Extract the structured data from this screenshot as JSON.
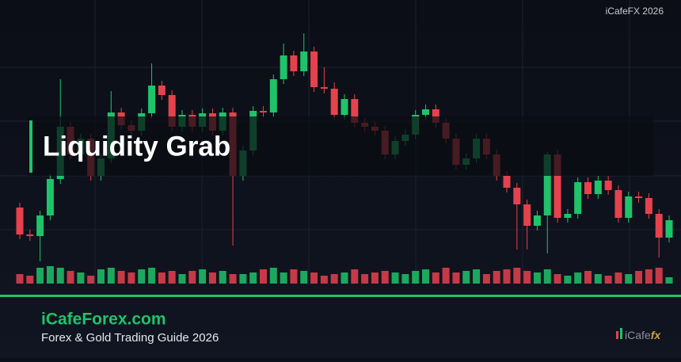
{
  "brand": "iCafeFX 2026",
  "banner": "Liquidity Grab",
  "footer": {
    "site": "iCafeForex.com",
    "subtitle": "Forex & Gold Trading Guide 2026",
    "logo_main": "iCafe",
    "logo_fx": "fx"
  },
  "chart_data": {
    "type": "candlestick",
    "ylim": [
      0,
      320
    ],
    "volume_ylim": [
      0,
      25
    ],
    "up_color": "#1fc36a",
    "down_color": "#e5424d",
    "open": [
      98,
      64,
      62,
      88,
      134,
      200,
      165,
      185,
      138,
      160,
      218,
      202,
      195,
      217,
      252,
      240,
      200,
      215,
      200,
      217,
      195,
      218,
      138,
      170,
      220,
      218,
      260,
      290,
      270,
      295,
      250,
      248,
      215,
      235,
      205,
      200,
      195,
      165,
      182,
      190,
      215,
      222,
      205,
      185,
      152,
      160,
      185,
      165,
      138,
      123,
      102,
      75,
      88,
      165,
      85,
      90,
      130,
      115,
      132,
      120,
      85,
      112,
      110,
      90,
      60
    ],
    "high": [
      104,
      70,
      94,
      140,
      260,
      206,
      191,
      191,
      166,
      245,
      224,
      208,
      223,
      280,
      258,
      246,
      221,
      221,
      223,
      223,
      224,
      224,
      176,
      226,
      226,
      266,
      305,
      296,
      318,
      301,
      275,
      256,
      241,
      241,
      211,
      206,
      201,
      188,
      196,
      221,
      228,
      228,
      211,
      191,
      166,
      191,
      191,
      171,
      144,
      129,
      108,
      94,
      168,
      171,
      96,
      136,
      136,
      138,
      138,
      126,
      118,
      118,
      116,
      96,
      88
    ],
    "low": [
      58,
      56,
      30,
      82,
      128,
      159,
      159,
      132,
      132,
      154,
      196,
      189,
      189,
      211,
      234,
      194,
      194,
      194,
      194,
      189,
      189,
      50,
      132,
      164,
      212,
      212,
      254,
      264,
      264,
      244,
      242,
      209,
      209,
      199,
      194,
      189,
      159,
      159,
      176,
      184,
      209,
      199,
      179,
      146,
      146,
      154,
      159,
      132,
      117,
      45,
      45,
      69,
      40,
      79,
      79,
      84,
      109,
      109,
      114,
      79,
      79,
      104,
      84,
      35,
      54
    ],
    "close": [
      64,
      62,
      88,
      134,
      200,
      165,
      185,
      138,
      160,
      218,
      202,
      195,
      217,
      252,
      240,
      200,
      215,
      200,
      217,
      195,
      218,
      138,
      170,
      220,
      218,
      260,
      290,
      270,
      295,
      250,
      248,
      215,
      235,
      205,
      200,
      195,
      165,
      182,
      190,
      215,
      222,
      205,
      185,
      152,
      160,
      185,
      165,
      138,
      123,
      102,
      75,
      88,
      165,
      85,
      90,
      130,
      115,
      132,
      120,
      85,
      112,
      110,
      90,
      60,
      82
    ],
    "volume": [
      12,
      10,
      20,
      22,
      20,
      16,
      14,
      10,
      18,
      20,
      16,
      14,
      18,
      20,
      14,
      16,
      12,
      16,
      18,
      14,
      16,
      12,
      12,
      14,
      18,
      20,
      14,
      18,
      16,
      14,
      10,
      12,
      14,
      18,
      12,
      14,
      16,
      14,
      12,
      16,
      18,
      14,
      20,
      14,
      16,
      18,
      12,
      16,
      18,
      20,
      16,
      14,
      18,
      12,
      10,
      14,
      16,
      12,
      10,
      14,
      12,
      16,
      18,
      20,
      8
    ]
  }
}
